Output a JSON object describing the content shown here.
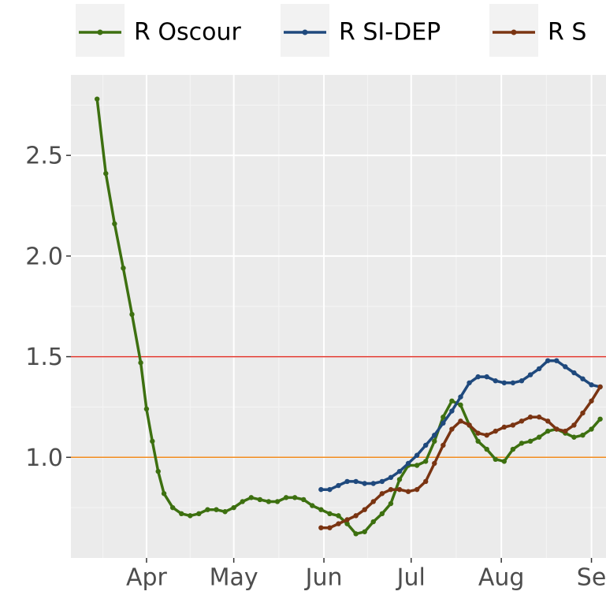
{
  "chart_data": {
    "type": "line",
    "xlim": [
      -26,
      158
    ],
    "ylim": [
      0.5,
      2.9
    ],
    "xticks": [
      {
        "value": 0,
        "label": "Apr"
      },
      {
        "value": 30,
        "label": "May"
      },
      {
        "value": 61,
        "label": "Jun"
      },
      {
        "value": 91,
        "label": "Jul"
      },
      {
        "value": 122,
        "label": "Aug"
      },
      {
        "value": 153,
        "label": "Se"
      }
    ],
    "yticks": [
      {
        "value": 1.0,
        "label": "1.0"
      },
      1.5,
      {
        "value": 2.0,
        "label": "2.0"
      },
      2.5
    ],
    "grid": true,
    "legend": "top",
    "hlines": [
      {
        "value": 1.5,
        "color": "#e0342b"
      },
      {
        "value": 1.0,
        "color": "#f0891c"
      }
    ],
    "series": [
      {
        "name": "R Oscour",
        "color": "#3d7010",
        "x": [
          -17,
          -14,
          -11,
          -8,
          -5,
          -2,
          0,
          2,
          4,
          6,
          9,
          12,
          15,
          18,
          21,
          24,
          27,
          30,
          33,
          36,
          39,
          42,
          45,
          48,
          51,
          54,
          57,
          60,
          63,
          66,
          69,
          72,
          75,
          78,
          81,
          84,
          87,
          90,
          93,
          96,
          99,
          102,
          105,
          108,
          111,
          114,
          117,
          120,
          123,
          126,
          129,
          132,
          135,
          138,
          141,
          144,
          147,
          150,
          153,
          156
        ],
        "values": [
          2.78,
          2.41,
          2.16,
          1.94,
          1.71,
          1.47,
          1.24,
          1.08,
          0.93,
          0.82,
          0.75,
          0.72,
          0.71,
          0.72,
          0.74,
          0.74,
          0.73,
          0.75,
          0.78,
          0.8,
          0.79,
          0.78,
          0.78,
          0.8,
          0.8,
          0.79,
          0.76,
          0.74,
          0.72,
          0.71,
          0.67,
          0.62,
          0.63,
          0.68,
          0.72,
          0.77,
          0.89,
          0.96,
          0.96,
          0.98,
          1.08,
          1.2,
          1.28,
          1.26,
          1.16,
          1.08,
          1.04,
          0.99,
          0.98,
          1.04,
          1.07,
          1.08,
          1.1,
          1.13,
          1.14,
          1.12,
          1.1,
          1.11,
          1.14,
          1.19
        ]
      },
      {
        "name": "R SI-DEP",
        "color": "#1f497d",
        "x": [
          60,
          63,
          66,
          69,
          72,
          75,
          78,
          81,
          84,
          87,
          90,
          93,
          96,
          99,
          102,
          105,
          108,
          111,
          114,
          117,
          120,
          123,
          126,
          129,
          132,
          135,
          138,
          141,
          144,
          147,
          150,
          153,
          156
        ],
        "values": [
          0.84,
          0.84,
          0.86,
          0.88,
          0.88,
          0.87,
          0.87,
          0.88,
          0.9,
          0.93,
          0.97,
          1.01,
          1.06,
          1.11,
          1.17,
          1.23,
          1.3,
          1.37,
          1.4,
          1.4,
          1.38,
          1.37,
          1.37,
          1.38,
          1.41,
          1.44,
          1.48,
          1.48,
          1.45,
          1.42,
          1.39,
          1.36,
          1.35
        ]
      },
      {
        "name": "R S",
        "color": "#7a3412",
        "x": [
          60,
          63,
          66,
          69,
          72,
          75,
          78,
          81,
          84,
          87,
          90,
          93,
          96,
          99,
          102,
          105,
          108,
          111,
          114,
          117,
          120,
          123,
          126,
          129,
          132,
          135,
          138,
          141,
          144,
          147,
          150,
          153,
          156
        ],
        "values": [
          0.65,
          0.65,
          0.67,
          0.69,
          0.71,
          0.74,
          0.78,
          0.82,
          0.84,
          0.84,
          0.83,
          0.84,
          0.88,
          0.97,
          1.06,
          1.14,
          1.18,
          1.16,
          1.12,
          1.11,
          1.13,
          1.15,
          1.16,
          1.18,
          1.2,
          1.2,
          1.18,
          1.14,
          1.13,
          1.16,
          1.22,
          1.28,
          1.35
        ]
      }
    ]
  }
}
